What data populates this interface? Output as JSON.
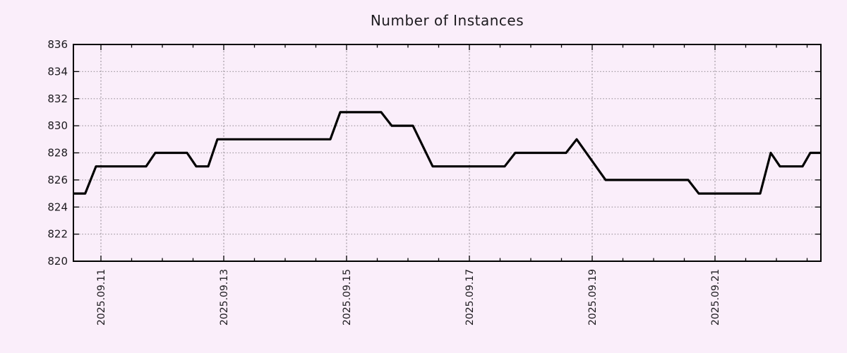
{
  "chart_data": {
    "type": "line",
    "title": "Number of Instances",
    "legend": "none",
    "grid": "dotted",
    "x_axis": {
      "unit": "days since 2025.09.10 00:00",
      "range": [
        0.552,
        12.724
      ],
      "minor_tick_interval": 0.5,
      "major_ticks": [
        {
          "t": 1,
          "label": "2025.09.11"
        },
        {
          "t": 3,
          "label": "2025.09.13"
        },
        {
          "t": 5,
          "label": "2025.09.15"
        },
        {
          "t": 7,
          "label": "2025.09.17"
        },
        {
          "t": 9,
          "label": "2025.09.19"
        },
        {
          "t": 11,
          "label": "2025.09.21"
        }
      ]
    },
    "y_axis": {
      "range": [
        820,
        836
      ],
      "tick_interval": 2,
      "ticks": [
        820,
        822,
        824,
        826,
        828,
        830,
        832,
        834,
        836
      ]
    },
    "series": [
      {
        "name": "instances",
        "color": "#000000",
        "points": [
          [
            0.552,
            825
          ],
          [
            0.744,
            825
          ],
          [
            0.92,
            827
          ],
          [
            1.736,
            827
          ],
          [
            1.885,
            828
          ],
          [
            2.402,
            828
          ],
          [
            2.552,
            827
          ],
          [
            2.747,
            827
          ],
          [
            2.897,
            829
          ],
          [
            4.736,
            829
          ],
          [
            4.897,
            831
          ],
          [
            5.563,
            831
          ],
          [
            5.736,
            830
          ],
          [
            6.08,
            830
          ],
          [
            6.402,
            827
          ],
          [
            7.575,
            827
          ],
          [
            7.747,
            828
          ],
          [
            8.575,
            828
          ],
          [
            8.747,
            829
          ],
          [
            9.218,
            826
          ],
          [
            10.563,
            826
          ],
          [
            10.736,
            825
          ],
          [
            11.736,
            825
          ],
          [
            11.908,
            828
          ],
          [
            12.057,
            827
          ],
          [
            12.425,
            827
          ],
          [
            12.552,
            828
          ],
          [
            12.724,
            828
          ]
        ]
      }
    ],
    "colors": {
      "background": "#faeefa",
      "grid": "#a39ba3",
      "axis": "#000000",
      "text": "#1c1a1e"
    }
  }
}
